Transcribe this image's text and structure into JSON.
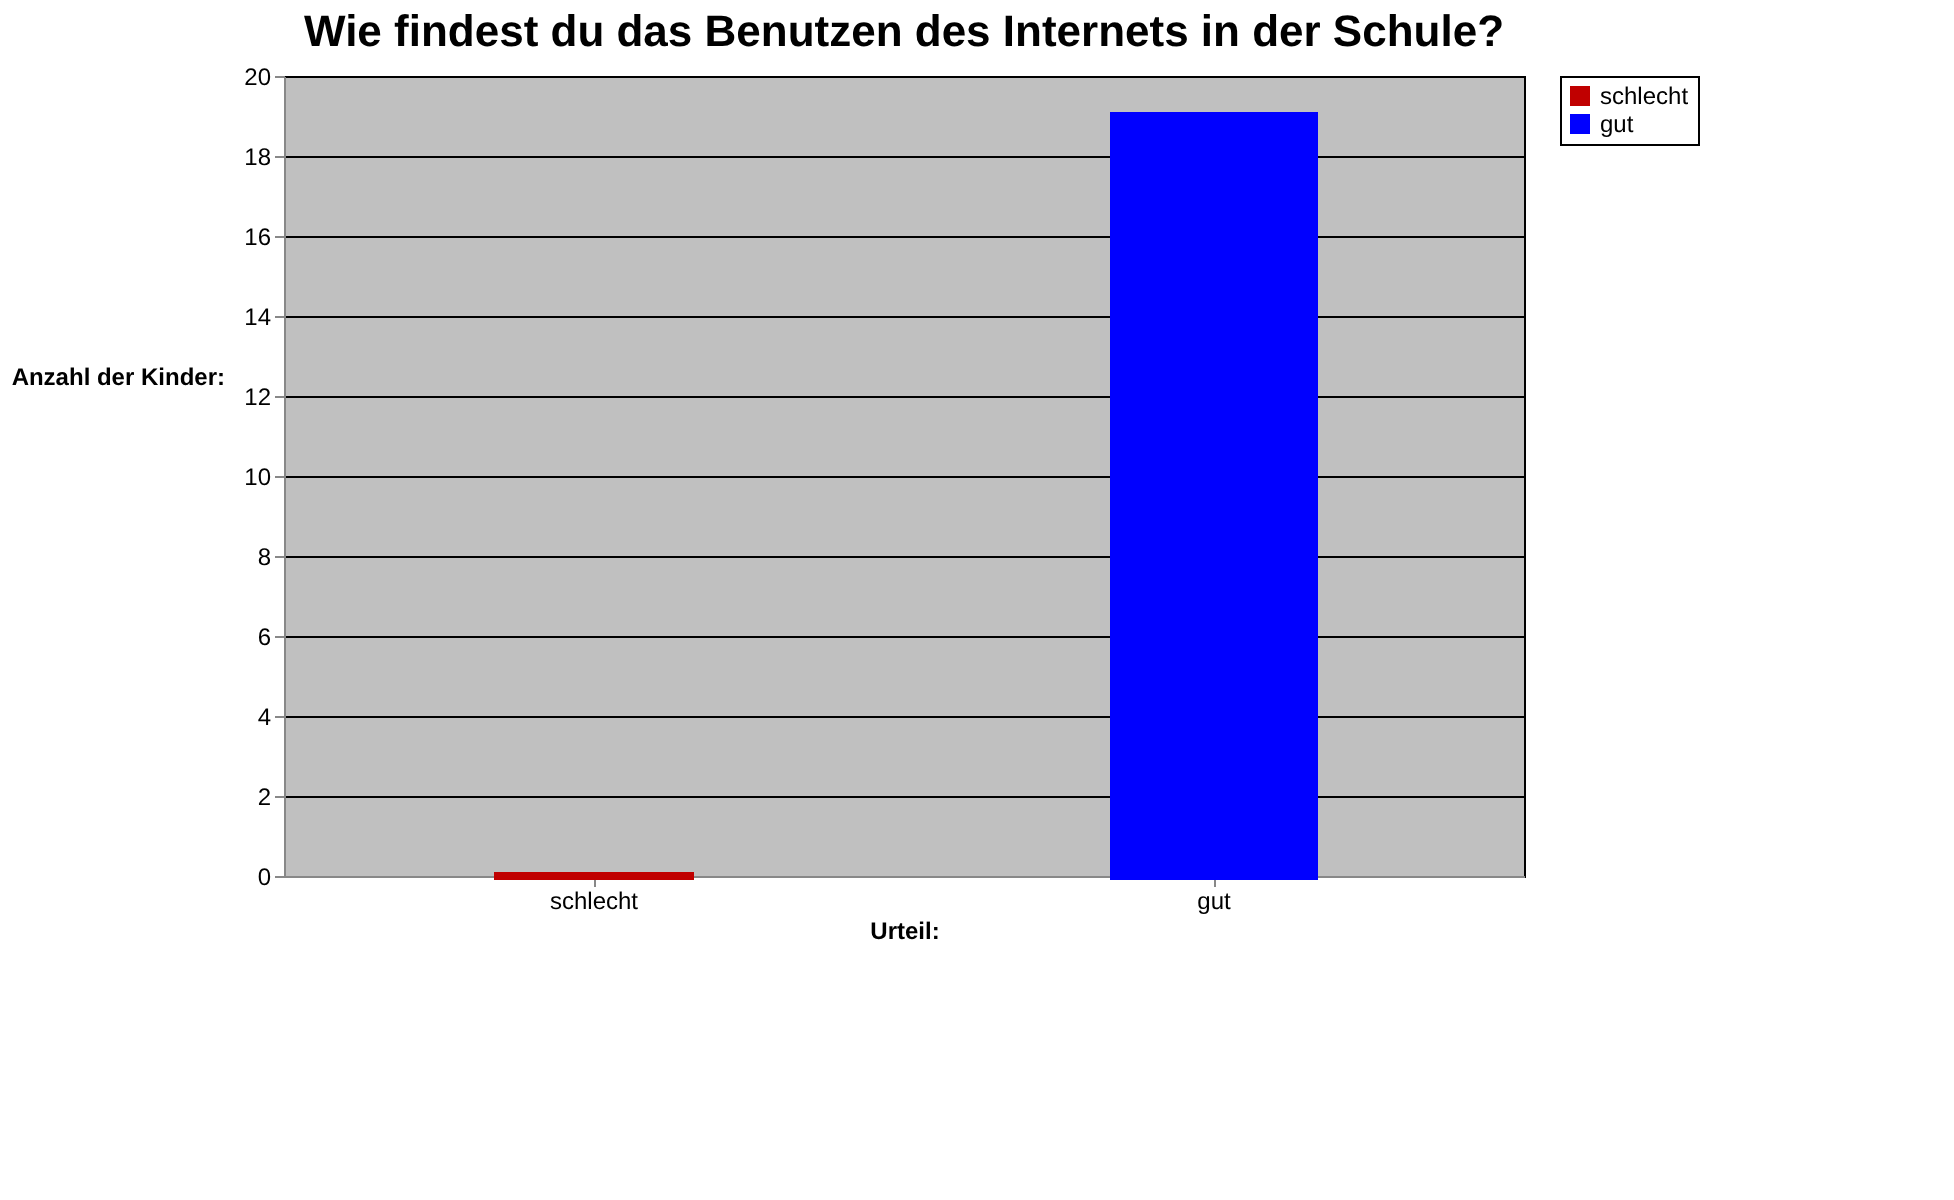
{
  "chart_data": {
    "type": "bar",
    "title": "Wie findest du das Benutzen des Internets in der Schule?",
    "xlabel": "Urteil:",
    "ylabel": "Anzahl der Kinder:",
    "categories": [
      "schlecht",
      "gut"
    ],
    "series": [
      {
        "name": "schlecht",
        "color": "#c00000",
        "values": [
          0,
          null
        ]
      },
      {
        "name": "gut",
        "color": "#0000ff",
        "values": [
          null,
          19
        ]
      }
    ],
    "ylim": [
      0,
      20
    ],
    "yticks": [
      0,
      2,
      4,
      6,
      8,
      10,
      12,
      14,
      16,
      18,
      20
    ],
    "grid": "y",
    "legend": "right"
  }
}
